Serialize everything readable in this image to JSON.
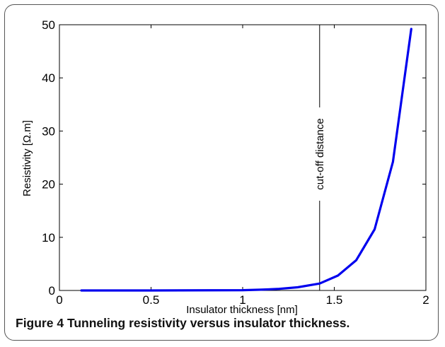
{
  "caption": {
    "label": "Figure 4",
    "text": "Tunneling resistivity versus insulator thickness."
  },
  "chart_data": {
    "type": "line",
    "xlabel": "Insulator thickness [nm]",
    "ylabel": "Resistivity [Ω.m]",
    "xlim": [
      0,
      2
    ],
    "ylim": [
      0,
      50
    ],
    "xticks": [
      "0",
      "0.5",
      "1",
      "1.5",
      "2"
    ],
    "yticks": [
      "0",
      "10",
      "20",
      "30",
      "40",
      "50"
    ],
    "grid": false,
    "series": [
      {
        "color": "#0000ee",
        "x": [
          0.12,
          0.5,
          1.0,
          1.1,
          1.2,
          1.3,
          1.42,
          1.52,
          1.62,
          1.72,
          1.82,
          1.92
        ],
        "y": [
          0.0,
          0.0,
          0.05,
          0.15,
          0.3,
          0.6,
          1.3,
          2.8,
          5.7,
          11.5,
          24.2,
          49.2
        ]
      }
    ],
    "annotations": [
      {
        "type": "vline",
        "x": 1.42,
        "text": "cut-off distance",
        "color": "#000000"
      }
    ]
  }
}
